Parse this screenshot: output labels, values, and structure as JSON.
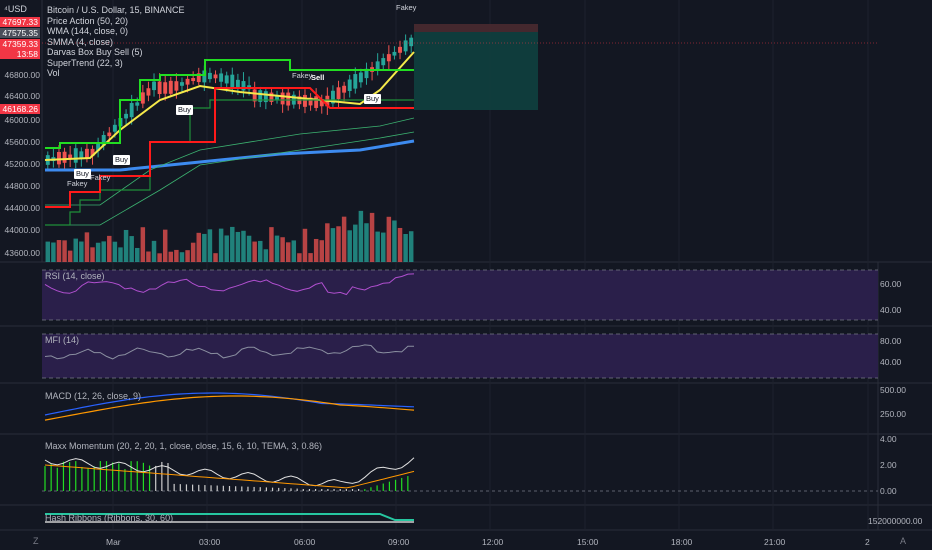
{
  "header": {
    "title": "Bitcoin / U.S. Dollar, 15, BINANCE",
    "indicators": [
      "Price Action (50, 20)",
      "WMA (144, close, 0)",
      "SMMA (4, close)",
      "Darvas Box Buy Sell (5)",
      "SuperTrend (22, 3)",
      "Vol"
    ]
  },
  "top_left": {
    "symbol_label": "USD",
    "menu_icon": "expand-icon"
  },
  "price_axis": {
    "badges": [
      {
        "value": "47697.33",
        "color": "#f23645"
      },
      {
        "value": "47575.35",
        "color": "#4a4e5a"
      },
      {
        "value": "47359.33",
        "color": "#f23645"
      },
      {
        "value": "13:58",
        "color": "#f23645"
      },
      {
        "value": "46168.26",
        "color": "#f23645"
      }
    ],
    "ticks": [
      "46800.00",
      "46400.00",
      "46000.00",
      "45600.00",
      "45200.00",
      "44800.00",
      "44400.00",
      "44000.00",
      "43600.00"
    ]
  },
  "panes": {
    "rsi": {
      "label": "RSI (14, close)",
      "ticks": [
        "60.00",
        "40.00"
      ]
    },
    "mfi": {
      "label": "MFI (14)",
      "ticks": [
        "80.00",
        "40.00"
      ]
    },
    "macd": {
      "label": "MACD (12, 26, close, 9)",
      "ticks": [
        "500.00",
        "250.00"
      ]
    },
    "maxx": {
      "label": "Maxx Momentum (20, 2, 20, 1, close, close, 15, 6, 10, TEMA, 3, 0.86)",
      "ticks": [
        "4.00",
        "2.00",
        "0.00"
      ]
    },
    "hash": {
      "label": "Hash Ribbons (Ribbons, 30, 60)",
      "ticks": [
        "152000000.00"
      ]
    }
  },
  "signals": [
    {
      "text": "Fakey",
      "kind": "plain"
    },
    {
      "text": "Buy",
      "kind": "buy"
    },
    {
      "text": "Fakey",
      "kind": "plain"
    },
    {
      "text": "Buy",
      "kind": "buy"
    },
    {
      "text": "Buy",
      "kind": "buy"
    },
    {
      "text": "Fakey",
      "kind": "plain"
    },
    {
      "text": "Sell",
      "kind": "sell"
    },
    {
      "text": "Buy",
      "kind": "buy"
    },
    {
      "text": "Fakey",
      "kind": "plain"
    }
  ],
  "time_axis": [
    "Mar",
    "03:00",
    "06:00",
    "09:00",
    "12:00",
    "15:00",
    "18:00",
    "21:00",
    "2"
  ],
  "corners": {
    "left": "Z",
    "right": "A"
  },
  "colors": {
    "background": "#131722",
    "bull": "#26a69a",
    "bear": "#ef5350",
    "supertrend_up": "#22dd22",
    "supertrend_down": "#ff1a1a",
    "wma": "#3d8bf0",
    "smma": "#f5e94a",
    "rsi_fill": "#2a1f4a",
    "rsi_line": "#b04fcf"
  }
}
